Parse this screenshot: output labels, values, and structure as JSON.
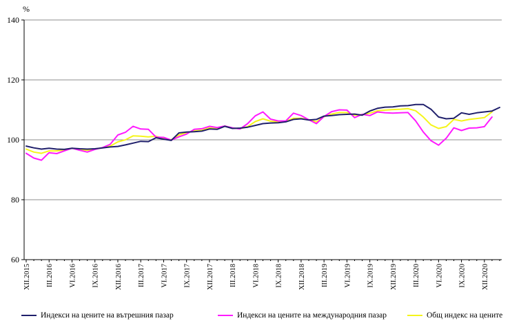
{
  "chart_data": {
    "type": "line",
    "unit_label": "%",
    "ylim": [
      60,
      140
    ],
    "y_ticks": [
      "60",
      "80",
      "100",
      "120",
      "140"
    ],
    "grid": "horizontal",
    "legend_position": "bottom",
    "x_tick_labels": [
      "XII.2015",
      "III.2016",
      "VI.2016",
      "IX.2016",
      "XII.2016",
      "III.2017",
      "VI.2017",
      "IX.2017",
      "XII.2017",
      "III.2018",
      "VI.2018",
      "IX.2018",
      "XII.2018",
      "III.2019",
      "VI.2019",
      "IX.2019",
      "XII.2019",
      "III.2020",
      "VI.2020",
      "IX.2020",
      "XII.2020"
    ],
    "series": [
      {
        "name": "Индекси на цените на вътрешния пазар",
        "color": "#1f1f6b",
        "values": [
          97.9,
          97.3,
          96.9,
          97.2,
          96.9,
          96.8,
          97.2,
          97.0,
          96.9,
          97.0,
          97.3,
          97.6,
          97.8,
          98.3,
          98.9,
          99.5,
          99.4,
          100.7,
          100.2,
          99.8,
          102.3,
          102.6,
          102.7,
          102.9,
          103.6,
          103.5,
          104.5,
          103.8,
          103.9,
          104.2,
          104.8,
          105.4,
          105.6,
          105.7,
          106.0,
          106.8,
          107.0,
          106.6,
          106.8,
          107.9,
          108.1,
          108.4,
          108.5,
          108.6,
          108.2,
          109.6,
          110.5,
          110.9,
          111.0,
          111.3,
          111.4,
          111.8,
          111.8,
          110.2,
          107.6,
          107.0,
          107.2,
          109.0,
          108.5,
          109.0,
          109.3,
          109.6,
          110.8
        ]
      },
      {
        "name": "Индекси на цените на международния пазар",
        "color": "#ff1aff",
        "values": [
          95.5,
          93.9,
          93.2,
          95.7,
          95.4,
          96.3,
          97.2,
          96.5,
          95.9,
          96.8,
          97.4,
          98.5,
          101.6,
          102.5,
          104.5,
          103.6,
          103.5,
          100.9,
          100.8,
          99.9,
          101.0,
          101.9,
          103.5,
          103.7,
          104.5,
          104.1,
          104.6,
          104.0,
          103.6,
          105.4,
          108.0,
          109.3,
          106.9,
          106.3,
          106.3,
          108.9,
          108.1,
          106.7,
          105.4,
          107.8,
          109.4,
          110.0,
          109.9,
          107.4,
          108.5,
          108.1,
          109.3,
          109.0,
          108.9,
          109.0,
          109.1,
          106.3,
          102.6,
          99.7,
          98.2,
          100.5,
          104.0,
          103.1,
          103.9,
          104.0,
          104.4,
          107.6
        ]
      },
      {
        "name": "Общ индекс на цените",
        "color": "#f5f51a",
        "values": [
          96.9,
          95.9,
          95.5,
          96.3,
          96.3,
          96.6,
          97.2,
          96.8,
          96.5,
          96.9,
          97.3,
          97.9,
          99.3,
          100.0,
          101.3,
          101.2,
          101.0,
          101.2,
          100.4,
          100.0,
          101.6,
          102.4,
          103.0,
          103.2,
          104.0,
          103.6,
          104.6,
          103.9,
          103.7,
          104.4,
          106.1,
          107.0,
          106.2,
          106.0,
          106.2,
          107.2,
          107.2,
          106.7,
          106.0,
          107.7,
          108.6,
          109.1,
          109.1,
          108.2,
          108.4,
          108.9,
          109.7,
          109.9,
          110.1,
          110.2,
          110.4,
          109.7,
          107.6,
          105.0,
          103.8,
          104.4,
          106.8,
          106.3,
          106.8,
          107.1,
          107.4,
          109.3
        ]
      }
    ]
  }
}
